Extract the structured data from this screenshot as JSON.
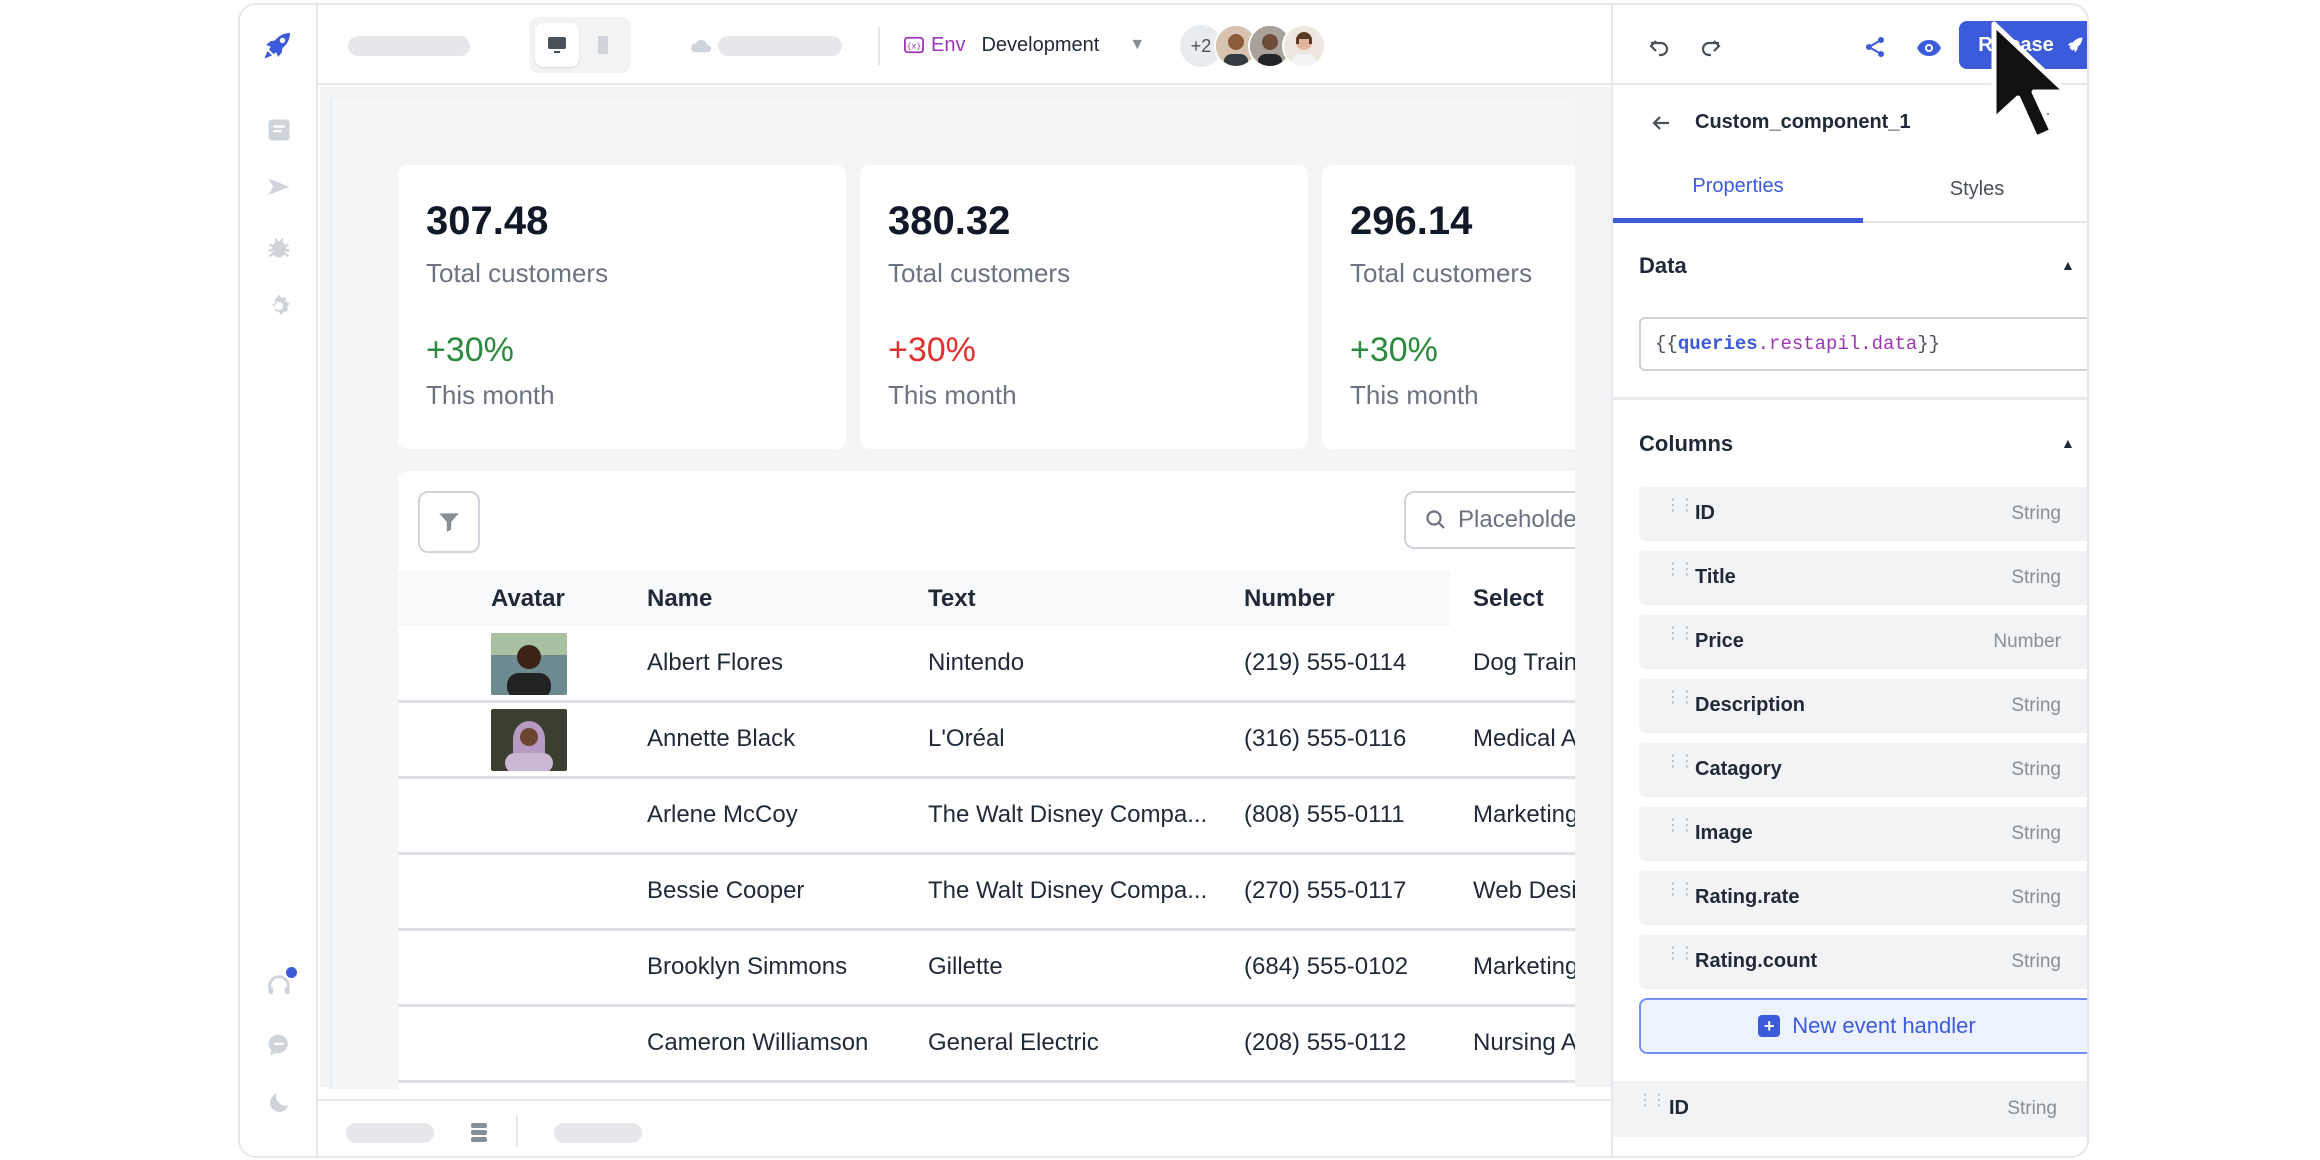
{
  "topbar": {
    "env_label": "Env",
    "env_value": "Development",
    "collaborators_extra": "+2"
  },
  "metrics": [
    {
      "value": "307.48",
      "label": "Total customers",
      "delta": "+30%",
      "delta_color": "green",
      "period": "This month"
    },
    {
      "value": "380.32",
      "label": "Total customers",
      "delta": "+30%",
      "delta_color": "red",
      "period": "This month"
    },
    {
      "value": "296.14",
      "label": "Total customers",
      "delta": "+30%",
      "delta_color": "green",
      "period": "This month"
    }
  ],
  "table": {
    "search_placeholder": "Placeholder",
    "columns": [
      "Avatar",
      "Name",
      "Text",
      "Number",
      "Select"
    ],
    "rows": [
      {
        "name": "Albert Flores",
        "text": "Nintendo",
        "number": "(219) 555-0114",
        "select": "Dog Trainer"
      },
      {
        "name": "Annette Black",
        "text": "L'Oréal",
        "number": "(316) 555-0116",
        "select": "Medical Assistant"
      },
      {
        "name": "Arlene McCoy",
        "text": "The Walt Disney Compa...",
        "number": "(808) 555-0111",
        "select": "Marketing"
      },
      {
        "name": "Bessie Cooper",
        "text": "The Walt Disney Compa...",
        "number": "(270) 555-0117",
        "select": "Web Designer"
      },
      {
        "name": "Brooklyn Simmons",
        "text": "Gillette",
        "number": "(684) 555-0102",
        "select": "Marketing"
      },
      {
        "name": "Cameron Williamson",
        "text": "General Electric",
        "number": "(208) 555-0112",
        "select": "Nursing Assistant"
      }
    ]
  },
  "panel": {
    "release_label": "Release",
    "component_name": "Custom_component_1",
    "tabs": [
      "Properties",
      "Styles"
    ],
    "data_section": {
      "title": "Data",
      "value_open": "{{",
      "value_obj": "queries",
      "value_path": ".restapil.data",
      "value_close": "}}"
    },
    "columns_section": {
      "title": "Columns",
      "items": [
        {
          "name": "ID",
          "type": "String"
        },
        {
          "name": "Title",
          "type": "String"
        },
        {
          "name": "Price",
          "type": "Number"
        },
        {
          "name": "Description",
          "type": "String"
        },
        {
          "name": "Catagory",
          "type": "String"
        },
        {
          "name": "Image",
          "type": "String"
        },
        {
          "name": "Rating.rate",
          "type": "String"
        },
        {
          "name": "Rating.count",
          "type": "String"
        }
      ]
    },
    "new_event_handler": "New event handler",
    "lower_item": {
      "name": "ID",
      "type": "String"
    }
  },
  "colors": {
    "accent": "#3b5bdb",
    "positive": "#2b8a3e",
    "negative": "#e03131",
    "env": "#9c36b5"
  }
}
